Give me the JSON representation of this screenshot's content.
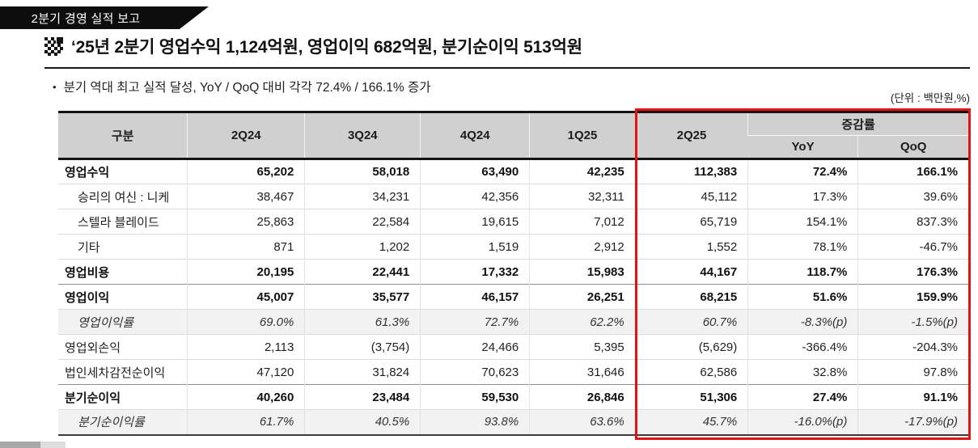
{
  "badge": {
    "text": "2분기 경영 실적 보고"
  },
  "header": {
    "title": "‘25년 2분기 영업수익 1,124억원, 영업이익 682억원, 분기순이익 513억원",
    "bullet_marker": "•",
    "bullet": "분기 역대 최고 실적 달성, YoY / QoQ 대비 각각 72.4% / 166.1% 증가",
    "unit_note": "(단위 : 백만원,%)"
  },
  "icons": {
    "title_icon": "checkered-flag-logo"
  },
  "colors": {
    "accent_red": "#e11414",
    "header_bg": "#d0d0d0",
    "italic_row_bg": "#f2f2f2",
    "badge_bg": "#0d0d0d"
  },
  "table": {
    "columns": [
      "구분",
      "2Q24",
      "3Q24",
      "4Q24",
      "1Q25",
      "2Q25"
    ],
    "growth_header": "증감률",
    "growth_subcolumns": [
      "YoY",
      "QoQ"
    ],
    "rows": [
      {
        "label": "영업수익",
        "style": "bold",
        "values": [
          "65,202",
          "58,018",
          "63,490",
          "42,235",
          "112,383",
          "72.4%",
          "166.1%"
        ]
      },
      {
        "label": "승리의 여신 : 니케",
        "style": "sub",
        "values": [
          "38,467",
          "34,231",
          "42,356",
          "32,311",
          "45,112",
          "17.3%",
          "39.6%"
        ]
      },
      {
        "label": "스텔라 블레이드",
        "style": "sub",
        "values": [
          "25,863",
          "22,584",
          "19,615",
          "7,012",
          "65,719",
          "154.1%",
          "837.3%"
        ]
      },
      {
        "label": "기타",
        "style": "sub",
        "values": [
          "871",
          "1,202",
          "1,519",
          "2,912",
          "1,552",
          "78.1%",
          "-46.7%"
        ]
      },
      {
        "label": "영업비용",
        "style": "bold",
        "values": [
          "20,195",
          "22,441",
          "17,332",
          "15,983",
          "44,167",
          "118.7%",
          "176.3%"
        ]
      },
      {
        "label": "영업이익",
        "style": "bold emph-top",
        "values": [
          "45,007",
          "35,577",
          "46,157",
          "26,251",
          "68,215",
          "51.6%",
          "159.9%"
        ]
      },
      {
        "label": "영업이익률",
        "style": "italic",
        "values": [
          "69.0%",
          "61.3%",
          "72.7%",
          "62.2%",
          "60.7%",
          "-8.3%(p)",
          "-1.5%(p)"
        ]
      },
      {
        "label": "영업외손익",
        "style": "plain",
        "values": [
          "2,113",
          "(3,754)",
          "24,466",
          "5,395",
          "(5,629)",
          "-366.4%",
          "-204.3%"
        ]
      },
      {
        "label": "법인세차감전순이익",
        "style": "plain",
        "values": [
          "47,120",
          "31,824",
          "70,623",
          "31,646",
          "62,586",
          "32.8%",
          "97.8%"
        ]
      },
      {
        "label": "분기순이익",
        "style": "bold emph-top",
        "values": [
          "40,260",
          "23,484",
          "59,530",
          "26,846",
          "51,306",
          "27.4%",
          "91.1%"
        ]
      },
      {
        "label": "분기순이익률",
        "style": "italic",
        "values": [
          "61.7%",
          "40.5%",
          "93.8%",
          "63.6%",
          "45.7%",
          "-16.0%(p)",
          "-17.9%(p)"
        ]
      }
    ]
  }
}
